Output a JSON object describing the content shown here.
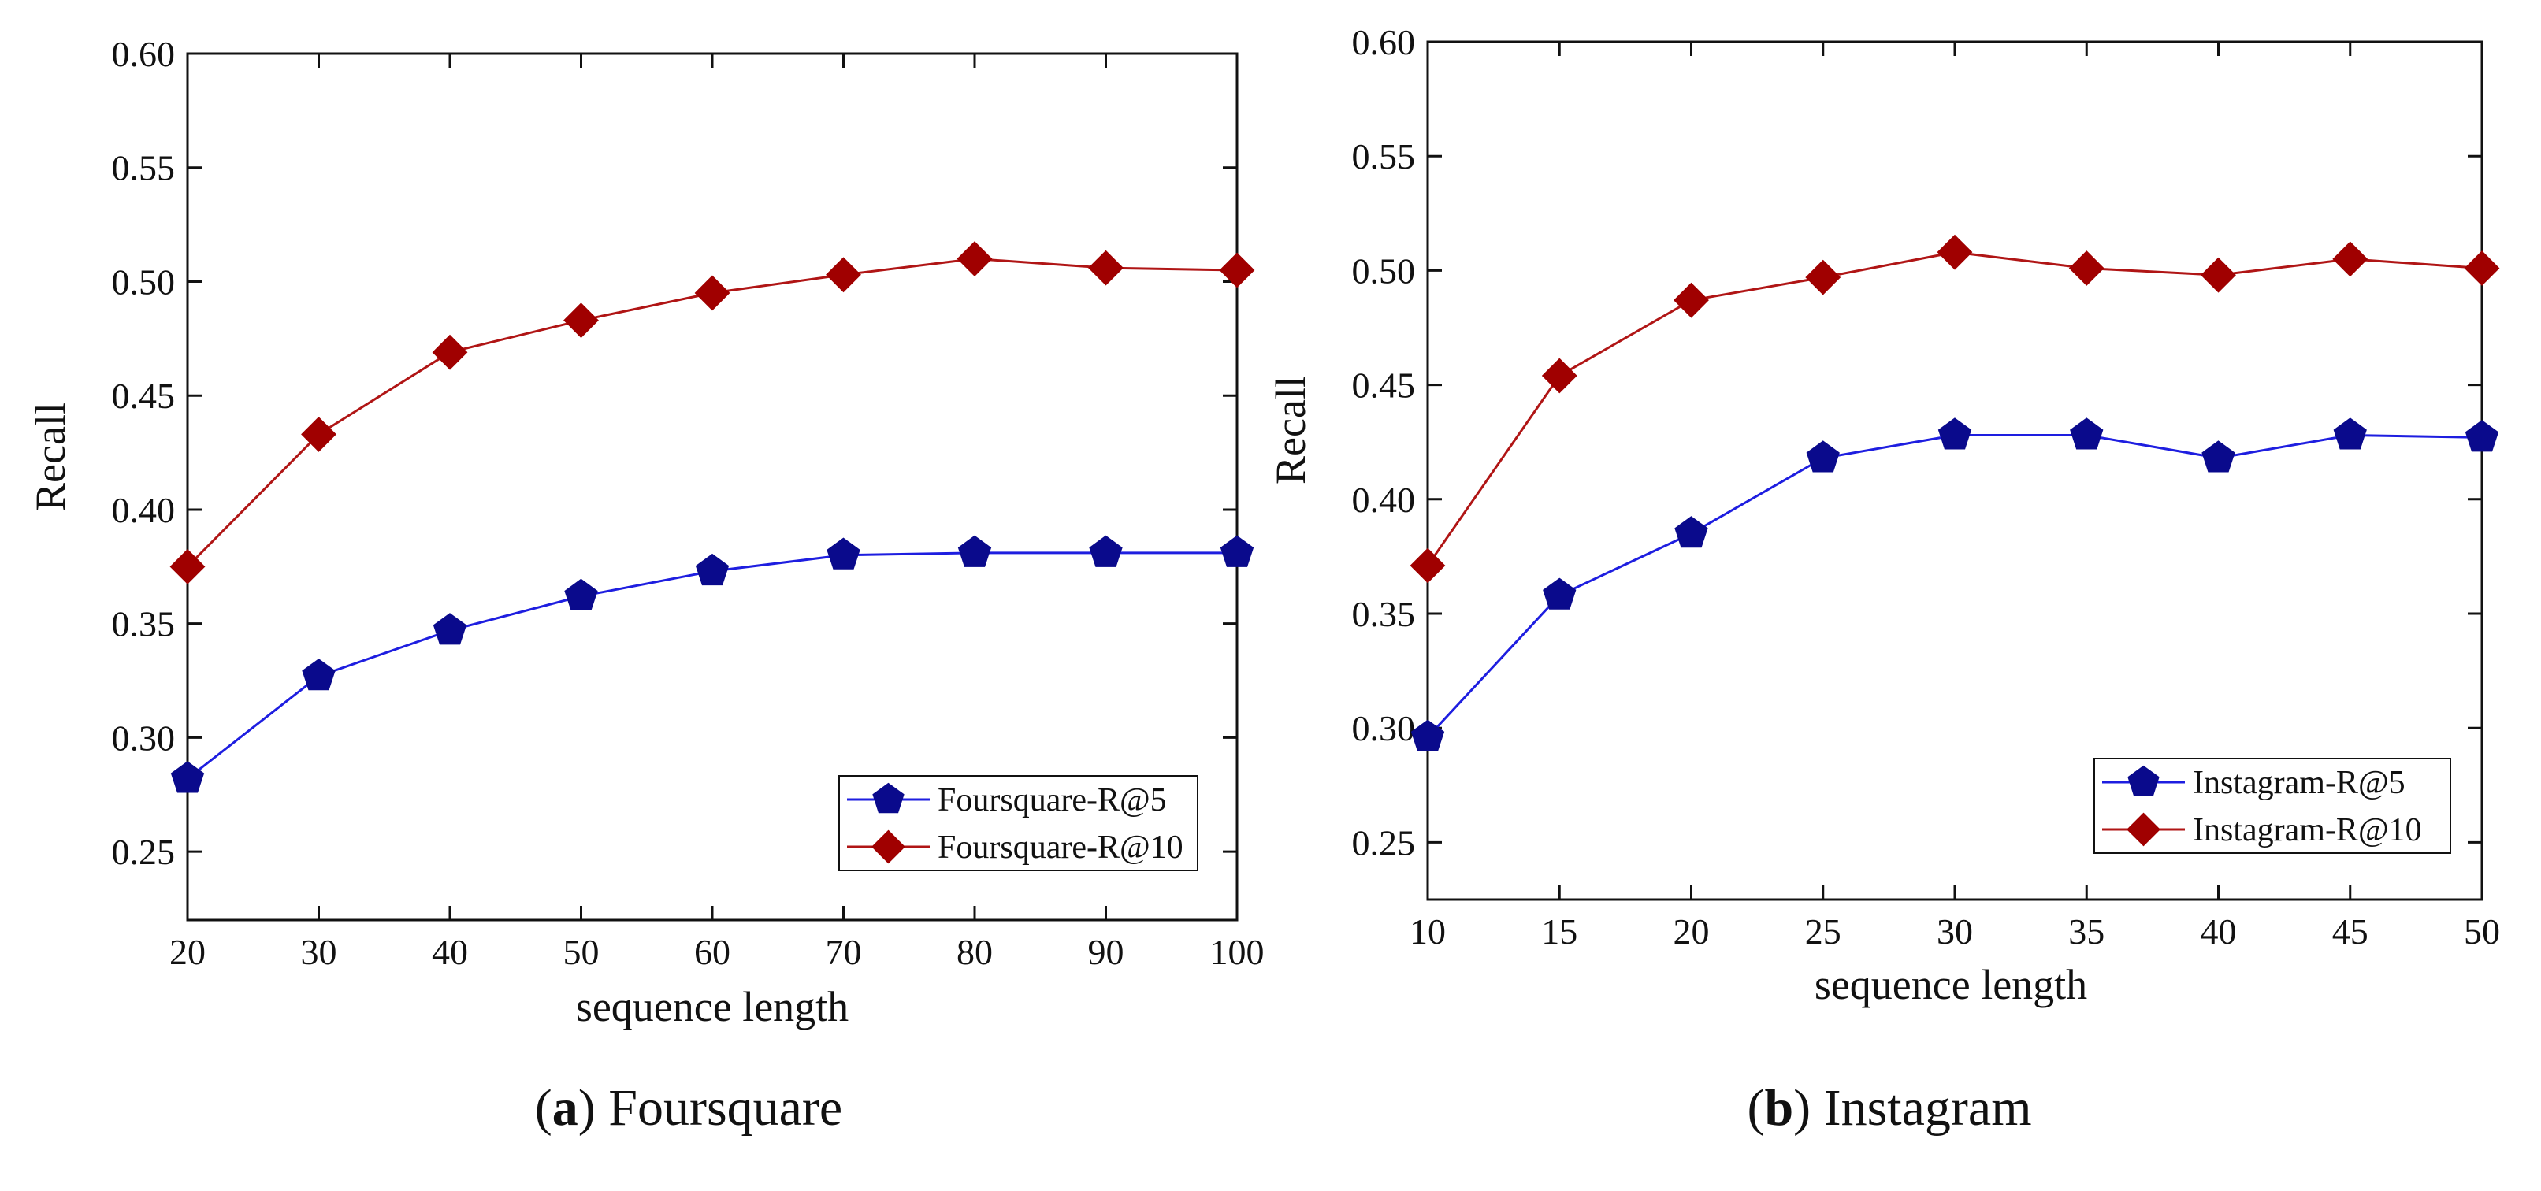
{
  "figure": {
    "subcaption_a": {
      "label": "a",
      "text": " Foursquare"
    },
    "subcaption_b": {
      "label": "b",
      "text": " Instagram"
    }
  },
  "chart_data": [
    {
      "type": "line",
      "title": "",
      "xlabel": "sequence length",
      "ylabel": "Recall",
      "x": [
        20,
        30,
        40,
        50,
        60,
        70,
        80,
        90,
        100
      ],
      "xlim": [
        20,
        100
      ],
      "ylim": [
        0.22,
        0.6
      ],
      "xticks": [
        "20",
        "30",
        "40",
        "50",
        "60",
        "70",
        "80",
        "90",
        "100"
      ],
      "yticks": [
        "0.25",
        "0.30",
        "0.35",
        "0.40",
        "0.45",
        "0.50",
        "0.55",
        "0.60"
      ],
      "grid": false,
      "legend_position": "bottom-right",
      "series": [
        {
          "name": "Foursquare-R@5",
          "color": "#1e1ee0",
          "marker_color": "#0a0a8c",
          "marker": "pentagon",
          "values": [
            0.282,
            0.327,
            0.347,
            0.362,
            0.373,
            0.38,
            0.381,
            0.381,
            0.381
          ]
        },
        {
          "name": "Foursquare-R@10",
          "color": "#b01515",
          "marker_color": "#a00000",
          "marker": "diamond",
          "values": [
            0.375,
            0.433,
            0.469,
            0.483,
            0.495,
            0.503,
            0.51,
            0.506,
            0.505
          ]
        }
      ]
    },
    {
      "type": "line",
      "title": "",
      "xlabel": "sequence length",
      "ylabel": "Recall",
      "x": [
        10,
        15,
        20,
        25,
        30,
        35,
        40,
        45,
        50
      ],
      "xlim": [
        10,
        50
      ],
      "ylim": [
        0.225,
        0.6
      ],
      "xticks": [
        "10",
        "15",
        "20",
        "25",
        "30",
        "35",
        "40",
        "45",
        "50"
      ],
      "yticks": [
        "0.25",
        "0.30",
        "0.35",
        "0.40",
        "0.45",
        "0.50",
        "0.55",
        "0.60"
      ],
      "grid": false,
      "legend_position": "bottom-right",
      "series": [
        {
          "name": "Instagram-R@5",
          "color": "#1e1ee0",
          "marker_color": "#0a0a8c",
          "marker": "pentagon",
          "values": [
            0.296,
            0.358,
            0.385,
            0.418,
            0.428,
            0.428,
            0.418,
            0.428,
            0.427
          ]
        },
        {
          "name": "Instagram-R@10",
          "color": "#b01515",
          "marker_color": "#a00000",
          "marker": "diamond",
          "values": [
            0.371,
            0.454,
            0.487,
            0.497,
            0.508,
            0.501,
            0.498,
            0.505,
            0.501
          ]
        }
      ]
    }
  ]
}
